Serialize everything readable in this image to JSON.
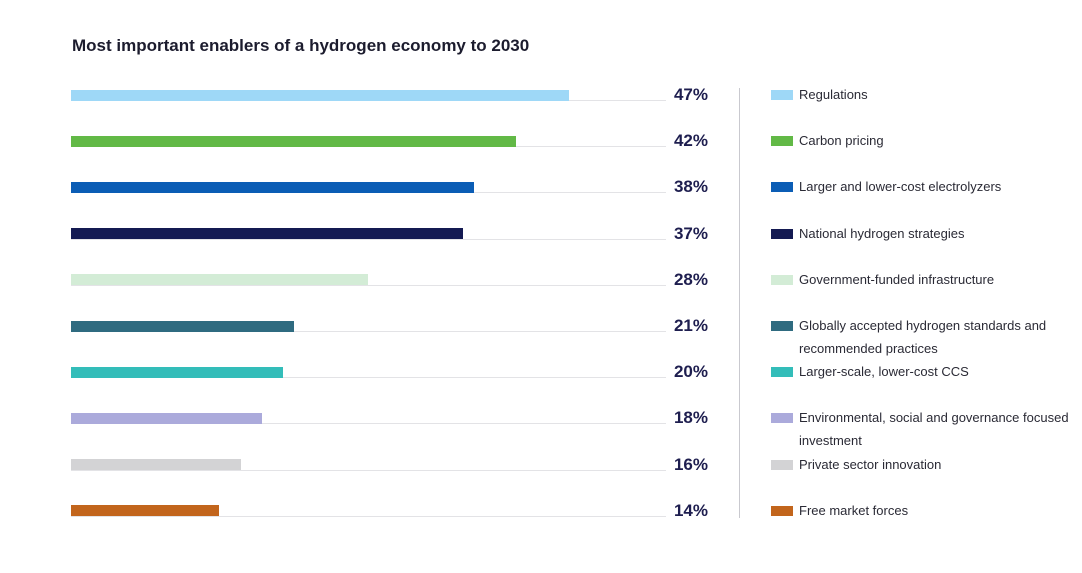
{
  "chart_data": {
    "type": "bar",
    "orientation": "horizontal",
    "title": "Most important enablers of a hydrogen economy to 2030",
    "xlim": [
      0,
      100
    ],
    "grid": false,
    "legend_position": "right",
    "categories": [
      "Regulations",
      "Carbon pricing",
      "Larger and lower-cost electrolyzers",
      "National hydrogen strategies",
      "Government-funded infrastructure",
      "Globally accepted hydrogen standards and recommended practices",
      "Larger-scale, lower-cost CCS",
      "Environmental, social and governance focused investment",
      "Private sector innovation",
      "Free market forces"
    ],
    "values": [
      47,
      42,
      38,
      37,
      28,
      21,
      20,
      18,
      16,
      14
    ],
    "value_labels": [
      "47%",
      "42%",
      "38%",
      "37%",
      "28%",
      "21%",
      "20%",
      "18%",
      "16%",
      "14%"
    ],
    "colors": [
      "#9ed8f7",
      "#62b946",
      "#0b5db5",
      "#141a52",
      "#d3ecd6",
      "#2f6b80",
      "#33bdb9",
      "#abaadb",
      "#d3d3d5",
      "#c2651c"
    ]
  }
}
